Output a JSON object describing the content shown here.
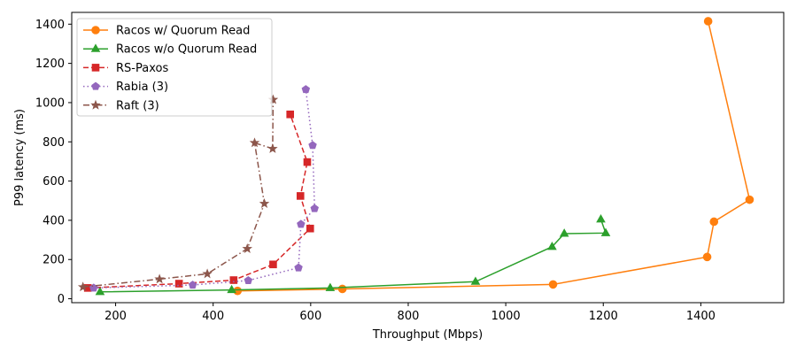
{
  "chart_data": {
    "type": "line",
    "xlabel": "Throughput (Mbps)",
    "ylabel": "P99 latency (ms)",
    "xlim": [
      110,
      1570
    ],
    "ylim": [
      -20,
      1460
    ],
    "xticks": [
      200,
      400,
      600,
      800,
      1000,
      1200,
      1400
    ],
    "yticks": [
      0,
      200,
      400,
      600,
      800,
      1000,
      1200,
      1400
    ],
    "grid": false,
    "legend_position": "top-left",
    "series": [
      {
        "name": "Racos w/ Quorum Read",
        "color": "#ff7f0e",
        "linestyle": "solid",
        "marker": "circle",
        "points": [
          [
            450,
            40
          ],
          [
            665,
            50
          ],
          [
            1097,
            73
          ],
          [
            1413,
            213
          ],
          [
            1427,
            393
          ],
          [
            1500,
            505
          ],
          [
            1415,
            1415
          ]
        ]
      },
      {
        "name": "Racos w/o Quorum Read",
        "color": "#2ca02c",
        "linestyle": "solid",
        "marker": "triangle",
        "points": [
          [
            168,
            35
          ],
          [
            438,
            45
          ],
          [
            640,
            55
          ],
          [
            938,
            87
          ],
          [
            1095,
            265
          ],
          [
            1120,
            332
          ],
          [
            1205,
            335
          ],
          [
            1195,
            405
          ]
        ]
      },
      {
        "name": "RS-Paxos",
        "color": "#d62728",
        "linestyle": "dashed",
        "marker": "square",
        "points": [
          [
            143,
            55
          ],
          [
            330,
            77
          ],
          [
            442,
            95
          ],
          [
            523,
            175
          ],
          [
            599,
            358
          ],
          [
            579,
            524
          ],
          [
            593,
            697
          ],
          [
            558,
            940
          ]
        ]
      },
      {
        "name": "Rabia (3)",
        "color": "#9467bd",
        "linestyle": "dotted",
        "marker": "pentagon",
        "points": [
          [
            155,
            55
          ],
          [
            358,
            70
          ],
          [
            472,
            93
          ],
          [
            575,
            158
          ],
          [
            580,
            380
          ],
          [
            608,
            460
          ],
          [
            604,
            782
          ],
          [
            590,
            1067
          ]
        ]
      },
      {
        "name": "Raft (3)",
        "color": "#8c564b",
        "linestyle": "dashdot",
        "marker": "star",
        "points": [
          [
            133,
            60
          ],
          [
            290,
            100
          ],
          [
            388,
            127
          ],
          [
            470,
            255
          ],
          [
            505,
            485
          ],
          [
            485,
            795
          ],
          [
            522,
            765
          ],
          [
            523,
            1015
          ]
        ]
      }
    ]
  }
}
